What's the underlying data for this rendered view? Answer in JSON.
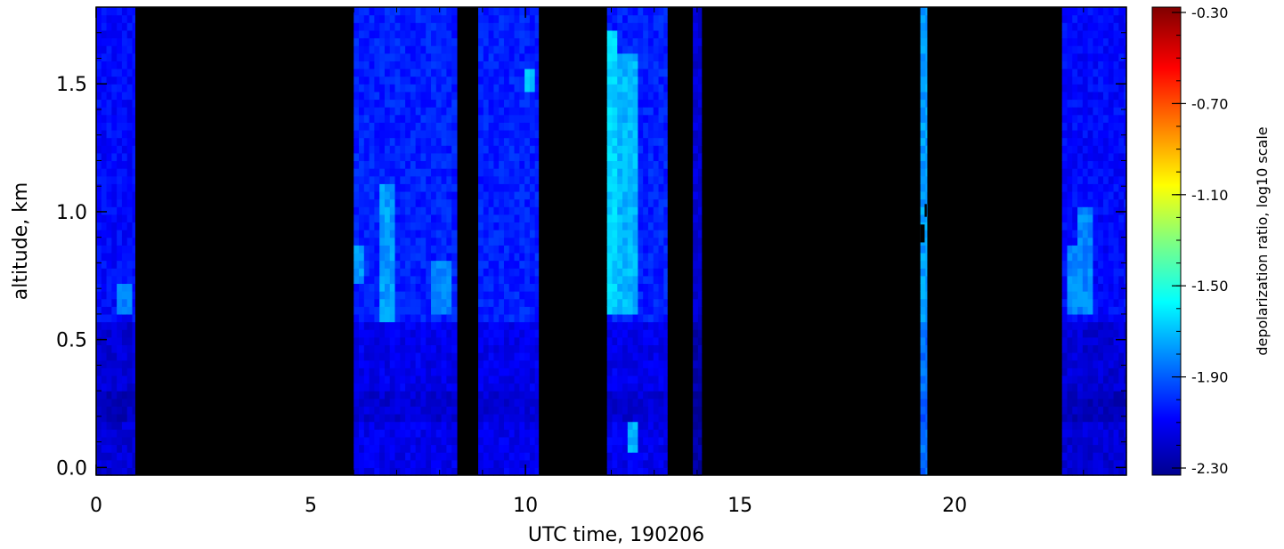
{
  "chart_data": {
    "type": "heatmap",
    "title": "",
    "xlabel": "UTC time, 190206",
    "ylabel": "altitude, km",
    "xlim": [
      0,
      24
    ],
    "ylim": [
      -0.03,
      1.8
    ],
    "xticks": [
      "0",
      "5",
      "10",
      "15",
      "20"
    ],
    "xtick_values": [
      0,
      5,
      10,
      15,
      20
    ],
    "yticks": [
      "0.0",
      "0.5",
      "1.0",
      "1.5"
    ],
    "ytick_values": [
      0.0,
      0.5,
      1.0,
      1.5
    ],
    "colorbar": {
      "label": "depolarization ratio, log10 scale",
      "range": [
        -2.3,
        -0.3
      ],
      "ticks": [
        "-0.30",
        "-0.70",
        "-1.10",
        "-1.50",
        "-1.90",
        "-2.30"
      ],
      "tick_values": [
        -0.3,
        -0.7,
        -1.1,
        -1.5,
        -1.9,
        -2.3
      ],
      "colormap": "rainbow"
    },
    "no_data_color": "#000000",
    "data_segments": [
      {
        "x_start": 0.0,
        "x_end": 0.9,
        "base_value": -2.05
      },
      {
        "x_start": 6.0,
        "x_end": 8.4,
        "base_value": -2.0
      },
      {
        "x_start": 8.9,
        "x_end": 10.3,
        "base_value": -2.0
      },
      {
        "x_start": 11.9,
        "x_end": 13.3,
        "base_value": -2.0
      },
      {
        "x_start": 13.9,
        "x_end": 14.1,
        "base_value": -2.15
      },
      {
        "x_start": 19.2,
        "x_end": 19.35,
        "base_value": -1.75
      },
      {
        "x_start": 22.5,
        "x_end": 24.0,
        "base_value": -2.05
      }
    ],
    "features": [
      {
        "x_start": 0.5,
        "x_end": 0.8,
        "y_start": 0.58,
        "y_end": 0.7,
        "value": -1.8
      },
      {
        "x_start": 6.0,
        "x_end": 6.2,
        "y_start": 0.7,
        "y_end": 0.85,
        "value": -1.75
      },
      {
        "x_start": 6.6,
        "x_end": 7.0,
        "y_start": 0.55,
        "y_end": 1.1,
        "value": -1.75
      },
      {
        "x_start": 7.8,
        "x_end": 8.3,
        "y_start": 0.6,
        "y_end": 0.8,
        "value": -1.8
      },
      {
        "x_start": 10.0,
        "x_end": 10.2,
        "y_start": 1.45,
        "y_end": 1.55,
        "value": -1.7
      },
      {
        "x_start": 11.9,
        "x_end": 12.1,
        "y_start": 0.6,
        "y_end": 1.7,
        "value": -1.65
      },
      {
        "x_start": 12.2,
        "x_end": 12.6,
        "y_start": 0.6,
        "y_end": 1.6,
        "value": -1.7
      },
      {
        "x_start": 12.4,
        "x_end": 12.6,
        "y_start": 0.05,
        "y_end": 0.15,
        "value": -1.7
      },
      {
        "x_start": 22.6,
        "x_end": 22.8,
        "y_start": 0.6,
        "y_end": 0.85,
        "value": -1.8
      },
      {
        "x_start": 22.9,
        "x_end": 23.2,
        "y_start": 0.6,
        "y_end": 1.0,
        "value": -1.8
      }
    ],
    "gaps": [
      {
        "x_start": 19.2,
        "x_end": 19.3,
        "y_start": 0.88,
        "y_end": 0.95
      },
      {
        "x_start": 19.3,
        "x_end": 19.35,
        "y_start": 0.98,
        "y_end": 1.03
      }
    ]
  }
}
